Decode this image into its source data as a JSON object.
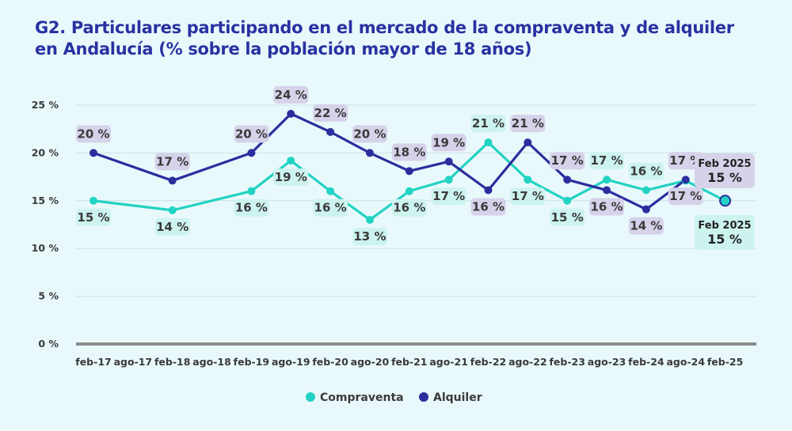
{
  "title": "G2. Particulares participando en el mercado de la compraventa y de alquiler en Andalucía (% sobre la población mayor de 18 años)",
  "colors": {
    "compraventa": "#22d3c3",
    "alquiler": "#2b2f9e",
    "compraventa_label_bg": "#cdf3ef",
    "alquiler_label_bg": "#d6d2ea",
    "grid": "#c8e2e5",
    "axis": "#8a8a8a"
  },
  "chart_data": {
    "type": "line",
    "title": "G2. Particulares participando en el mercado de la compraventa y de alquiler en Andalucía (% sobre la población mayor de 18 años)",
    "xlabel": "",
    "ylabel": "",
    "ylim": [
      0,
      25
    ],
    "yticks": [
      "0 %",
      "5 %",
      "10 %",
      "15 %",
      "20 %",
      "25 %"
    ],
    "ytick_values": [
      0,
      5,
      10,
      15,
      20,
      25
    ],
    "categories": [
      "feb-17",
      "ago-17",
      "feb-18",
      "ago-18",
      "feb-19",
      "ago-19",
      "feb-20",
      "ago-20",
      "feb-21",
      "ago-21",
      "feb-22",
      "ago-22",
      "feb-23",
      "ago-23",
      "feb-24",
      "ago-24",
      "feb-25"
    ],
    "series": [
      {
        "name": "Compraventa",
        "color_key": "compraventa",
        "points": [
          [
            0,
            15
          ],
          [
            2,
            14
          ],
          [
            4,
            16
          ],
          [
            5,
            19.2
          ],
          [
            6,
            16
          ],
          [
            7,
            13
          ],
          [
            8,
            16
          ],
          [
            9,
            17.2
          ],
          [
            10,
            21.1
          ],
          [
            11,
            17.2
          ],
          [
            12,
            15
          ],
          [
            13,
            17.2
          ],
          [
            14,
            16.1
          ],
          [
            15,
            17.1
          ],
          [
            16,
            15
          ]
        ],
        "labels": [
          {
            "i": 0,
            "text": "15 %",
            "pos": "below"
          },
          {
            "i": 2,
            "text": "14 %",
            "pos": "below"
          },
          {
            "i": 4,
            "text": "16 %",
            "pos": "below"
          },
          {
            "i": 5,
            "text": "19 %",
            "pos": "below"
          },
          {
            "i": 6,
            "text": "16 %",
            "pos": "below"
          },
          {
            "i": 7,
            "text": "13 %",
            "pos": "below"
          },
          {
            "i": 8,
            "text": "16 %",
            "pos": "below"
          },
          {
            "i": 9,
            "text": "17 %",
            "pos": "below"
          },
          {
            "i": 10,
            "text": "21 %",
            "pos": "above"
          },
          {
            "i": 11,
            "text": "17 %",
            "pos": "below"
          },
          {
            "i": 12,
            "text": "15 %",
            "pos": "below"
          },
          {
            "i": 13,
            "text": "17 %",
            "pos": "above"
          },
          {
            "i": 14,
            "text": "16 %",
            "pos": "above"
          }
        ]
      },
      {
        "name": "Alquiler",
        "color_key": "alquiler",
        "points": [
          [
            0,
            20
          ],
          [
            2,
            17.1
          ],
          [
            4,
            20
          ],
          [
            5,
            24.1
          ],
          [
            6,
            22.2
          ],
          [
            7,
            20
          ],
          [
            8,
            18.1
          ],
          [
            9,
            19.1
          ],
          [
            10,
            16.1
          ],
          [
            11,
            21.1
          ],
          [
            12,
            17.2
          ],
          [
            13,
            16.1
          ],
          [
            14,
            14.1
          ],
          [
            15,
            17.2
          ]
        ],
        "labels": [
          {
            "i": 0,
            "text": "20 %",
            "pos": "above"
          },
          {
            "i": 2,
            "text": "17 %",
            "pos": "above"
          },
          {
            "i": 4,
            "text": "20 %",
            "pos": "above"
          },
          {
            "i": 5,
            "text": "24 %",
            "pos": "above"
          },
          {
            "i": 6,
            "text": "22 %",
            "pos": "above"
          },
          {
            "i": 7,
            "text": "20 %",
            "pos": "above"
          },
          {
            "i": 8,
            "text": "18 %",
            "pos": "above"
          },
          {
            "i": 9,
            "text": "19 %",
            "pos": "above"
          },
          {
            "i": 10,
            "text": "16 %",
            "pos": "below"
          },
          {
            "i": 11,
            "text": "21 %",
            "pos": "above"
          },
          {
            "i": 12,
            "text": "17 %",
            "pos": "above"
          },
          {
            "i": 13,
            "text": "16 %",
            "pos": "below"
          },
          {
            "i": 14,
            "text": "14 %",
            "pos": "below"
          },
          {
            "i": 15,
            "text": "17 %",
            "pos": "below"
          },
          {
            "i": 15,
            "text": "17 %",
            "pos": "above"
          }
        ]
      }
    ],
    "annotations": [
      {
        "series": "Alquiler",
        "title": "Feb 2025",
        "value": "15 %"
      },
      {
        "series": "Compraventa",
        "title": "Feb 2025",
        "value": "15 %"
      }
    ],
    "legend": {
      "position": "bottom-center",
      "items": [
        "Compraventa",
        "Alquiler"
      ]
    }
  }
}
